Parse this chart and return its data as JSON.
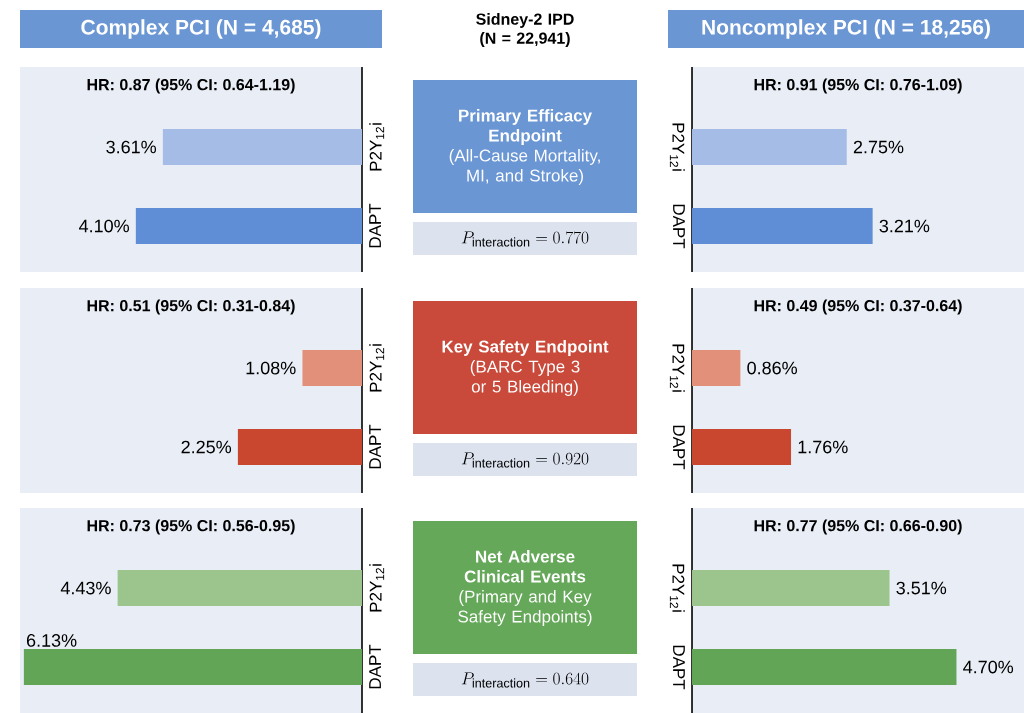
{
  "chart_data": [
    {
      "type": "other",
      "title": "Complex PCI (N = 4,685)",
      "color": "#6a96d4"
    },
    {
      "type": "other",
      "title": "Sidney-2 IPD (N = 22,941)"
    },
    {
      "type": "other",
      "title": "Noncomplex PCI (N = 18,256)",
      "color": "#6a96d4"
    },
    {
      "type": "bar",
      "orientation": "horizontal",
      "title": "HR: 0.87 (95% CI: 0.64-1.19)",
      "categories": [
        "P2Y$_{12}$i",
        "DAPT"
      ],
      "values": [
        3.61,
        4.1
      ],
      "colors": [
        "#a4bce6",
        "#5f8ed6"
      ],
      "value_labels": [
        "3.61%",
        "4.10%"
      ],
      "xlim": [
        6.2,
        0
      ],
      "tick_labels": "y"
    },
    {
      "type": "other",
      "title": "Primary Efficacy Endpoint",
      "subtitle": "(All-Cause Mortality, MI, and Stroke)",
      "color": "#6a96d4",
      "annotations": [
        "P_{\\mathrm{interaction}} = 0.770"
      ]
    },
    {
      "type": "bar",
      "orientation": "horizontal",
      "title": "HR: 0.91 (95% CI: 0.76-1.09)",
      "categories": [
        "P2Y$_{12}$i",
        "DAPT"
      ],
      "values": [
        2.75,
        3.21
      ],
      "colors": [
        "#a4bce6",
        "#5f8ed6"
      ],
      "value_labels": [
        "2.75%",
        "3.21%"
      ],
      "xlim": [
        0,
        5.9
      ],
      "tick_labels": "y"
    },
    {
      "type": "bar",
      "orientation": "horizontal",
      "title": "HR: 0.51 (95% CI: 0.31-0.84)",
      "categories": [
        "P2Y$_{12}$i",
        "DAPT"
      ],
      "values": [
        1.08,
        2.25
      ],
      "colors": [
        "#e3907a",
        "#c9472f"
      ],
      "value_labels": [
        "1.08%",
        "2.25%"
      ],
      "xlim": [
        6.2,
        0
      ],
      "tick_labels": "y"
    },
    {
      "type": "other",
      "title": "Key Safety Endpoint",
      "subtitle": "(BARC Type 3 or 5 Bleeding)",
      "color": "#c94a3a",
      "annotations": [
        "P_{\\mathrm{interaction}} = 0.920"
      ]
    },
    {
      "type": "bar",
      "orientation": "horizontal",
      "title": "HR: 0.49 (95% CI: 0.37-0.64)",
      "categories": [
        "P2Y$_{12}$i",
        "DAPT"
      ],
      "values": [
        0.86,
        1.76
      ],
      "colors": [
        "#e3907a",
        "#c9472f"
      ],
      "value_labels": [
        "0.86%",
        "1.76%"
      ],
      "xlim": [
        0,
        5.9
      ],
      "tick_labels": "y"
    },
    {
      "type": "bar",
      "orientation": "horizontal",
      "title": "HR: 0.73 (95% CI: 0.56-0.95)",
      "categories": [
        "P2Y$_{12}$i",
        "DAPT"
      ],
      "values": [
        4.43,
        6.13
      ],
      "colors": [
        "#9cc58e",
        "#63a556"
      ],
      "value_labels": [
        "4.43%",
        "6.13%"
      ],
      "xlim": [
        6.2,
        0
      ],
      "tick_labels": "y"
    },
    {
      "type": "other",
      "title": "Net Adverse Clinical Events",
      "subtitle": "(Primary and Key Safety Endpoints)",
      "color": "#66a85a",
      "annotations": [
        "P_{\\mathrm{interaction}} = 0.640"
      ]
    },
    {
      "type": "bar",
      "orientation": "horizontal",
      "title": "HR: 0.77 (95% CI: 0.66-0.90)",
      "categories": [
        "P2Y$_{12}$i",
        "DAPT"
      ],
      "values": [
        3.51,
        4.7
      ],
      "colors": [
        "#9cc58e",
        "#63a556"
      ],
      "value_labels": [
        "3.51%",
        "4.70%"
      ],
      "xlim": [
        0,
        5.9
      ],
      "tick_labels": "y"
    }
  ]
}
